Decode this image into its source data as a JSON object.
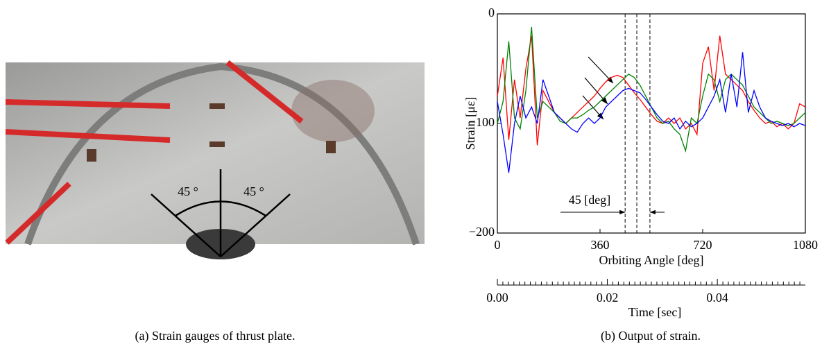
{
  "panel_a": {
    "angle_labels": [
      "45 °",
      "45 °"
    ],
    "caption": "(a) Strain gauges of thrust plate."
  },
  "chart_data": {
    "type": "line",
    "caption": "(b) Output of strain.",
    "xlabel": "Orbiting Angle [deg]",
    "ylabel": "Strain [με]",
    "xlim": [
      0,
      1080
    ],
    "xticks": [
      0,
      360,
      720,
      1080
    ],
    "ylim": [
      -200,
      0
    ],
    "yticks": [
      {
        "value": -200,
        "label": "−200"
      },
      {
        "value": -100,
        "label": "−100"
      },
      0
    ],
    "x2label": "Time [sec]",
    "x2lim": [
      0,
      0.056
    ],
    "x2ticks": [
      {
        "value": 0,
        "label": "0.00"
      },
      {
        "value": 0.02,
        "label": "0.02"
      },
      {
        "value": 0.04,
        "label": "0.04"
      }
    ],
    "x2minor": [
      0.001,
      0.002,
      0.003,
      0.004,
      0.005,
      0.006,
      0.007,
      0.008,
      0.009,
      0.01,
      0.011,
      0.012,
      0.013,
      0.014,
      0.015,
      0.016,
      0.017,
      0.018,
      0.019,
      0.021,
      0.022,
      0.023,
      0.024,
      0.025,
      0.026,
      0.027,
      0.028,
      0.029,
      0.03,
      0.031,
      0.032,
      0.033,
      0.034,
      0.035,
      0.036,
      0.037,
      0.038,
      0.039,
      0.041,
      0.042,
      0.043,
      0.044,
      0.045,
      0.046,
      0.047,
      0.048,
      0.049,
      0.05,
      0.051,
      0.052,
      0.053,
      0.054,
      0.055
    ],
    "vlines": [
      448,
      489,
      535
    ],
    "annotation": "45 [deg]",
    "x": [
      0,
      20,
      40,
      60,
      80,
      100,
      120,
      140,
      160,
      180,
      200,
      220,
      240,
      260,
      280,
      300,
      320,
      340,
      360,
      380,
      400,
      420,
      440,
      460,
      480,
      500,
      520,
      540,
      560,
      580,
      600,
      620,
      640,
      660,
      680,
      700,
      720,
      740,
      760,
      780,
      800,
      820,
      840,
      860,
      880,
      900,
      920,
      940,
      960,
      980,
      1000,
      1020,
      1040,
      1060,
      1080
    ],
    "series": [
      {
        "color": "#ff0000",
        "values": [
          -75,
          -40,
          -115,
          -60,
          -95,
          -50,
          -20,
          -120,
          -70,
          -80,
          -90,
          -95,
          -100,
          -95,
          -90,
          -85,
          -80,
          -75,
          -68,
          -62,
          -58,
          -56,
          -58,
          -65,
          -72,
          -78,
          -85,
          -92,
          -98,
          -100,
          -95,
          -100,
          -95,
          -105,
          -100,
          -110,
          -45,
          -30,
          -70,
          -20,
          -55,
          -60,
          -65,
          -70,
          -80,
          -88,
          -95,
          -100,
          -98,
          -103,
          -100,
          -105,
          -100,
          -82,
          -85
        ]
      },
      {
        "color": "#008000",
        "values": [
          -100,
          -80,
          -25,
          -95,
          -105,
          -70,
          -12,
          -95,
          -80,
          -85,
          -90,
          -98,
          -100,
          -95,
          -95,
          -92,
          -88,
          -85,
          -80,
          -75,
          -70,
          -65,
          -60,
          -55,
          -58,
          -65,
          -75,
          -85,
          -95,
          -100,
          -98,
          -105,
          -110,
          -125,
          -95,
          -100,
          -75,
          -55,
          -60,
          -80,
          -60,
          -55,
          -60,
          -65,
          -75,
          -85,
          -90,
          -95,
          -100,
          -98,
          -100,
          -102,
          -100,
          -95,
          -90
        ]
      },
      {
        "color": "#0000ff",
        "values": [
          -80,
          -110,
          -145,
          -100,
          -75,
          -95,
          -85,
          -100,
          -60,
          -75,
          -90,
          -95,
          -100,
          -105,
          -108,
          -100,
          -95,
          -100,
          -95,
          -85,
          -80,
          -75,
          -70,
          -68,
          -70,
          -72,
          -78,
          -85,
          -92,
          -98,
          -100,
          -95,
          -105,
          -98,
          -103,
          -100,
          -95,
          -85,
          -75,
          -60,
          -90,
          -55,
          -85,
          -35,
          -90,
          -70,
          -85,
          -95,
          -98,
          -100,
          -102,
          -100,
          -103,
          -100,
          -102
        ]
      }
    ]
  }
}
